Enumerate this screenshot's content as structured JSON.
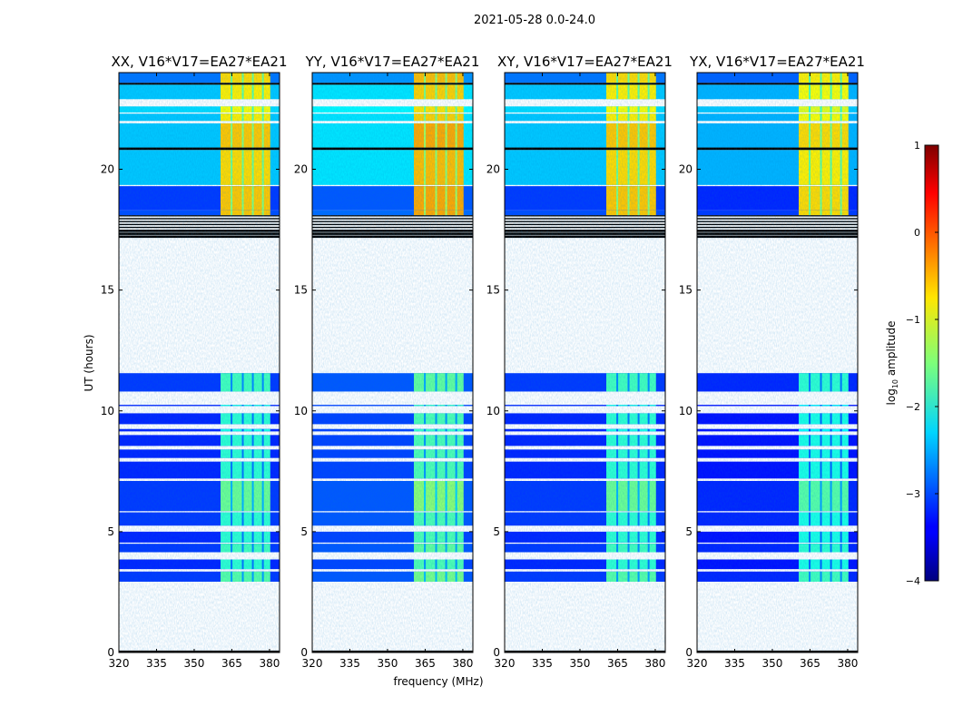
{
  "chart_data": {
    "type": "heatmap",
    "suptitle": "2021-05-28 0.0-24.0",
    "xlabel": "frequency (MHz)",
    "ylabel": "UT (hours)",
    "xlim": [
      320,
      384
    ],
    "ylim": [
      0,
      24
    ],
    "xticks": [
      320,
      335,
      350,
      365,
      380
    ],
    "yticks": [
      0,
      5,
      10,
      15,
      20
    ],
    "colorbar": {
      "label_main": "log",
      "label_sub": "10",
      "label_rest": " amplitude",
      "range": [
        -4,
        1
      ],
      "ticks": [
        -4,
        -3,
        -2,
        -1,
        0,
        1
      ],
      "colormap": "jet"
    },
    "rfi_band_mhz": [
      360.5,
      380.3
    ],
    "rfi_stripes_mhz": [
      364.5,
      369,
      373,
      377
    ],
    "segments": [
      {
        "t": [
          0.0,
          0.08
        ],
        "kind": "flagged"
      },
      {
        "t": [
          2.93,
          3.35
        ],
        "kind": "data",
        "bg": -3.1,
        "band": -1.7
      },
      {
        "t": [
          3.45,
          3.85
        ],
        "kind": "data",
        "bg": -3.2,
        "band": -1.9
      },
      {
        "t": [
          4.15,
          4.5
        ],
        "kind": "data",
        "bg": -3.1,
        "band": -1.8
      },
      {
        "t": [
          4.55,
          5.0
        ],
        "kind": "data",
        "bg": -3.2,
        "band": -1.9
      },
      {
        "t": [
          5.25,
          5.8
        ],
        "kind": "data",
        "bg": -3.1,
        "band": -1.9
      },
      {
        "t": [
          5.85,
          7.1
        ],
        "kind": "data",
        "bg": -3.1,
        "band": -1.6
      },
      {
        "t": [
          7.2,
          7.9
        ],
        "kind": "data",
        "bg": -3.2,
        "band": -1.9
      },
      {
        "t": [
          8.05,
          8.4
        ],
        "kind": "data",
        "bg": -3.2,
        "band": -1.9
      },
      {
        "t": [
          8.55,
          9.0
        ],
        "kind": "data",
        "bg": -3.2,
        "band": -1.9
      },
      {
        "t": [
          9.15,
          9.25
        ],
        "kind": "data",
        "bg": -3.2,
        "band": -2.0
      },
      {
        "t": [
          9.45,
          9.9
        ],
        "kind": "data",
        "bg": -3.2,
        "band": -1.9
      },
      {
        "t": [
          10.2,
          10.25
        ],
        "kind": "data",
        "bg": -3.2,
        "band": -2.0
      },
      {
        "t": [
          10.8,
          11.56
        ],
        "kind": "data",
        "bg": -3.1,
        "band": -1.8
      },
      {
        "t": [
          17.2,
          18.1
        ],
        "kind": "flagged_striped"
      },
      {
        "t": [
          18.1,
          18.3
        ],
        "kind": "data",
        "bg": -3.0,
        "band": -0.6
      },
      {
        "t": [
          18.3,
          19.3
        ],
        "kind": "data",
        "bg": -3.1,
        "band": -0.6
      },
      {
        "t": [
          19.35,
          20.8
        ],
        "kind": "data",
        "bg": -2.4,
        "band": -0.7
      },
      {
        "t": [
          20.8,
          20.9
        ],
        "kind": "flagged"
      },
      {
        "t": [
          20.9,
          21.9
        ],
        "kind": "data",
        "bg": -2.4,
        "band": -0.6
      },
      {
        "t": [
          22.0,
          22.3
        ],
        "kind": "data",
        "bg": -2.4,
        "band": -0.8
      },
      {
        "t": [
          22.35,
          22.6
        ],
        "kind": "data",
        "bg": -2.3,
        "band": -0.9
      },
      {
        "t": [
          22.9,
          23.5
        ],
        "kind": "data",
        "bg": -2.4,
        "band": -0.8
      },
      {
        "t": [
          23.5,
          23.58
        ],
        "kind": "flagged"
      },
      {
        "t": [
          23.58,
          24.0
        ],
        "kind": "data",
        "bg": -2.8,
        "band": -0.7
      }
    ],
    "panels": [
      {
        "title": "XX, V16*V17=EA27*EA21",
        "offset": 0.0
      },
      {
        "title": "YY, V16*V17=EA27*EA21",
        "offset": 0.15
      },
      {
        "title": "XY, V16*V17=EA27*EA21",
        "offset": 0.0
      },
      {
        "title": "YX, V16*V17=EA27*EA21",
        "offset": -0.1
      }
    ]
  }
}
